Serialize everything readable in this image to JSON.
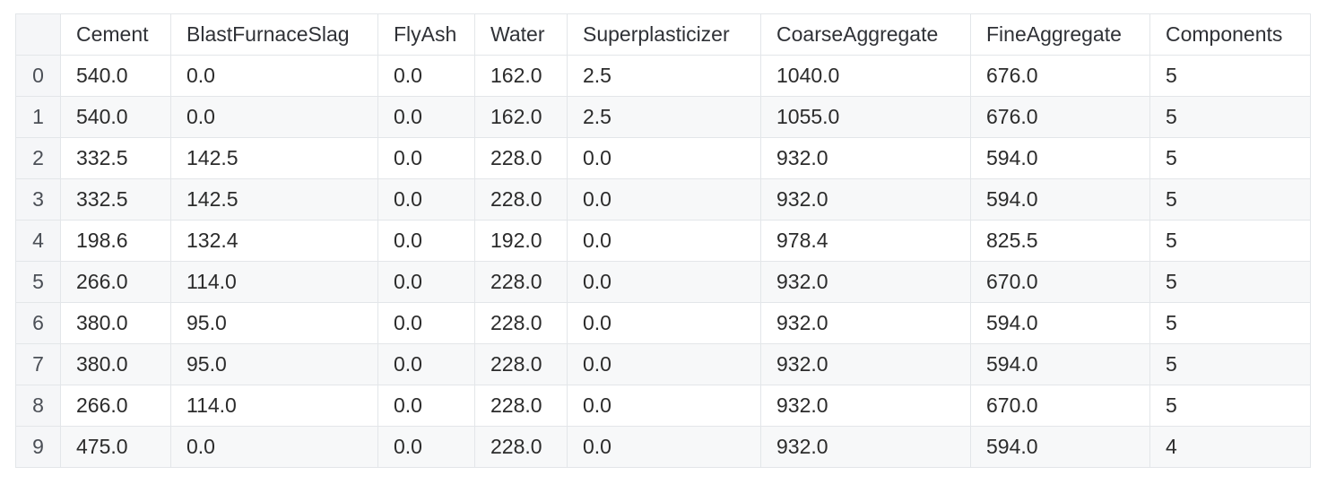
{
  "table": {
    "index_header": "",
    "columns": [
      "Cement",
      "BlastFurnaceSlag",
      "FlyAsh",
      "Water",
      "Superplasticizer",
      "CoarseAggregate",
      "FineAggregate",
      "Components"
    ],
    "rows": [
      {
        "index": "0",
        "cells": [
          "540.0",
          "0.0",
          "0.0",
          "162.0",
          "2.5",
          "1040.0",
          "676.0",
          "5"
        ]
      },
      {
        "index": "1",
        "cells": [
          "540.0",
          "0.0",
          "0.0",
          "162.0",
          "2.5",
          "1055.0",
          "676.0",
          "5"
        ]
      },
      {
        "index": "2",
        "cells": [
          "332.5",
          "142.5",
          "0.0",
          "228.0",
          "0.0",
          "932.0",
          "594.0",
          "5"
        ]
      },
      {
        "index": "3",
        "cells": [
          "332.5",
          "142.5",
          "0.0",
          "228.0",
          "0.0",
          "932.0",
          "594.0",
          "5"
        ]
      },
      {
        "index": "4",
        "cells": [
          "198.6",
          "132.4",
          "0.0",
          "192.0",
          "0.0",
          "978.4",
          "825.5",
          "5"
        ]
      },
      {
        "index": "5",
        "cells": [
          "266.0",
          "114.0",
          "0.0",
          "228.0",
          "0.0",
          "932.0",
          "670.0",
          "5"
        ]
      },
      {
        "index": "6",
        "cells": [
          "380.0",
          "95.0",
          "0.0",
          "228.0",
          "0.0",
          "932.0",
          "594.0",
          "5"
        ]
      },
      {
        "index": "7",
        "cells": [
          "380.0",
          "95.0",
          "0.0",
          "228.0",
          "0.0",
          "932.0",
          "594.0",
          "5"
        ]
      },
      {
        "index": "8",
        "cells": [
          "266.0",
          "114.0",
          "0.0",
          "228.0",
          "0.0",
          "932.0",
          "670.0",
          "5"
        ]
      },
      {
        "index": "9",
        "cells": [
          "475.0",
          "0.0",
          "0.0",
          "228.0",
          "0.0",
          "932.0",
          "594.0",
          "4"
        ]
      }
    ]
  }
}
